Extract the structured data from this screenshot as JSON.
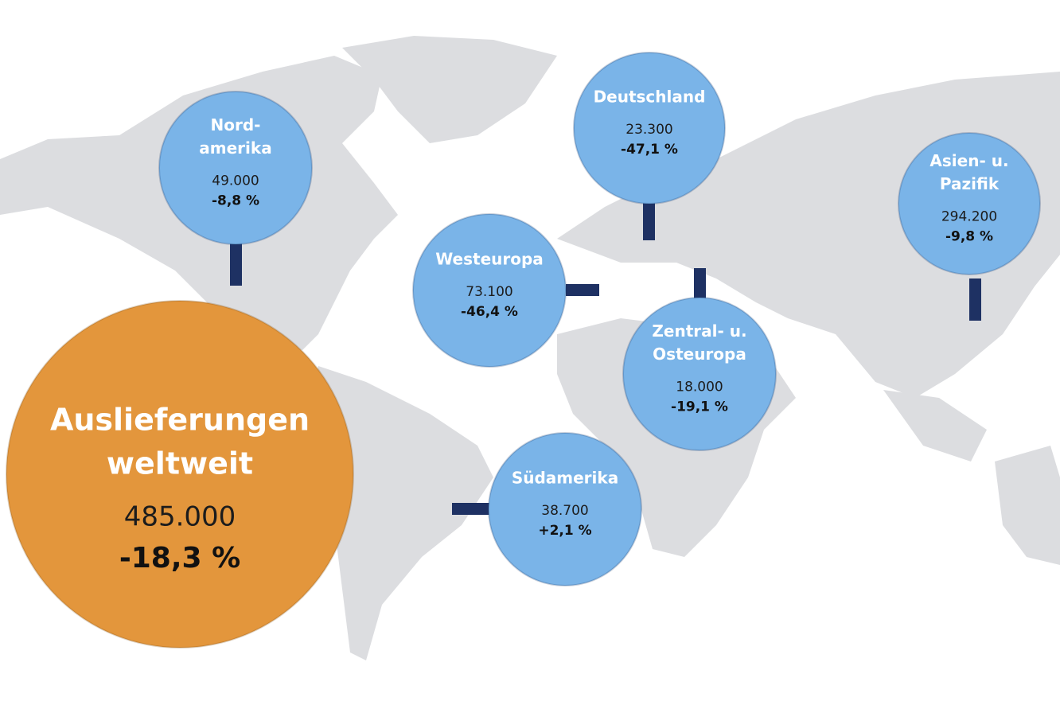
{
  "total": {
    "title_lines": [
      "Auslieferungen",
      "weltweit"
    ],
    "value": "485.000",
    "change": "-18,3 %"
  },
  "regions": [
    {
      "name_lines": [
        "Nord-",
        "amerika"
      ],
      "value": "49.000",
      "change": "-8,8 %"
    },
    {
      "name_lines": [
        "Deutschland"
      ],
      "value": "23.300",
      "change": "-47,1 %"
    },
    {
      "name_lines": [
        "Westeuropa"
      ],
      "value": "73.100",
      "change": "-46,4 %"
    },
    {
      "name_lines": [
        "Zentral- u.",
        "Osteuropa"
      ],
      "value": "18.000",
      "change": "-19,1 %"
    },
    {
      "name_lines": [
        "Asien- u.",
        "Pazifik"
      ],
      "value": "294.200",
      "change": "-9,8 %"
    },
    {
      "name_lines": [
        "Südamerika"
      ],
      "value": "38.700",
      "change": "+2,1 %"
    }
  ]
}
